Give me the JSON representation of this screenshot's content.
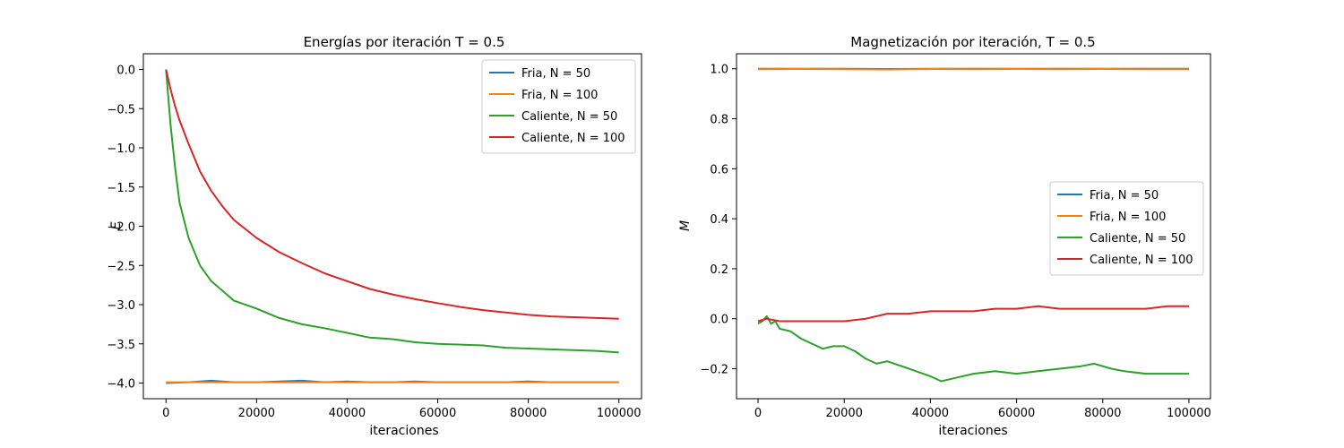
{
  "chart_data": [
    {
      "type": "line",
      "title": "Energías por iteración T = 0.5",
      "xlabel": "iteraciones",
      "ylabel": "E",
      "xlim": [
        -5000,
        105000
      ],
      "ylim": [
        -4.2,
        0.2
      ],
      "x_ticks": [
        0,
        20000,
        40000,
        60000,
        80000,
        100000
      ],
      "x_tick_labels": [
        "0",
        "20000",
        "40000",
        "60000",
        "80000",
        "100000"
      ],
      "y_ticks": [
        0.0,
        -0.5,
        -1.0,
        -1.5,
        -2.0,
        -2.5,
        -3.0,
        -3.5,
        -4.0
      ],
      "y_tick_labels": [
        "0.0",
        "−0.5",
        "−1.0",
        "−1.5",
        "−2.0",
        "−2.5",
        "−3.0",
        "−3.5",
        "−4.0"
      ],
      "grid": false,
      "legend_position": "top-right",
      "series": [
        {
          "name": "Fria, N = 50",
          "color": "#1f77b4",
          "x": [
            0,
            5000,
            10000,
            15000,
            20000,
            25000,
            30000,
            35000,
            40000,
            45000,
            50000,
            55000,
            60000,
            65000,
            70000,
            75000,
            80000,
            85000,
            90000,
            95000,
            100000
          ],
          "y": [
            -4.0,
            -3.99,
            -3.97,
            -3.99,
            -3.99,
            -3.98,
            -3.97,
            -3.99,
            -3.98,
            -3.99,
            -3.99,
            -3.98,
            -3.99,
            -3.99,
            -3.99,
            -3.99,
            -3.98,
            -3.99,
            -3.99,
            -3.99,
            -3.99
          ]
        },
        {
          "name": "Fria, N = 100",
          "color": "#ff7f0e",
          "x": [
            0,
            5000,
            10000,
            15000,
            20000,
            25000,
            30000,
            35000,
            40000,
            45000,
            50000,
            55000,
            60000,
            65000,
            70000,
            75000,
            80000,
            85000,
            90000,
            95000,
            100000
          ],
          "y": [
            -3.99,
            -3.99,
            -3.99,
            -3.99,
            -3.99,
            -3.99,
            -3.99,
            -3.99,
            -3.99,
            -3.99,
            -3.99,
            -3.99,
            -3.99,
            -3.99,
            -3.99,
            -3.99,
            -3.99,
            -3.99,
            -3.99,
            -3.99,
            -3.99
          ]
        },
        {
          "name": "Caliente, N = 50",
          "color": "#2ca02c",
          "x": [
            0,
            1000,
            2000,
            3000,
            5000,
            7500,
            10000,
            15000,
            20000,
            25000,
            30000,
            35000,
            40000,
            45000,
            50000,
            55000,
            60000,
            65000,
            70000,
            75000,
            80000,
            85000,
            90000,
            95000,
            100000
          ],
          "y": [
            0.0,
            -0.7,
            -1.25,
            -1.7,
            -2.15,
            -2.5,
            -2.7,
            -2.95,
            -3.05,
            -3.17,
            -3.25,
            -3.3,
            -3.36,
            -3.42,
            -3.44,
            -3.48,
            -3.5,
            -3.51,
            -3.52,
            -3.55,
            -3.56,
            -3.57,
            -3.58,
            -3.59,
            -3.61
          ]
        },
        {
          "name": "Caliente, N = 100",
          "color": "#d62728",
          "x": [
            0,
            1000,
            2000,
            3000,
            5000,
            7500,
            10000,
            12500,
            15000,
            20000,
            25000,
            30000,
            35000,
            40000,
            45000,
            50000,
            55000,
            60000,
            65000,
            70000,
            75000,
            80000,
            85000,
            90000,
            95000,
            100000
          ],
          "y": [
            0.0,
            -0.25,
            -0.47,
            -0.65,
            -0.95,
            -1.3,
            -1.55,
            -1.75,
            -1.92,
            -2.15,
            -2.33,
            -2.47,
            -2.6,
            -2.7,
            -2.8,
            -2.87,
            -2.93,
            -2.98,
            -3.03,
            -3.07,
            -3.1,
            -3.13,
            -3.15,
            -3.16,
            -3.17,
            -3.18
          ]
        }
      ]
    },
    {
      "type": "line",
      "title": "Magnetización por iteración, T = 0.5",
      "xlabel": "iteraciones",
      "ylabel": "M",
      "xlim": [
        -5000,
        105000
      ],
      "ylim": [
        -0.32,
        1.06
      ],
      "x_ticks": [
        0,
        20000,
        40000,
        60000,
        80000,
        100000
      ],
      "x_tick_labels": [
        "0",
        "20000",
        "40000",
        "60000",
        "80000",
        "100000"
      ],
      "y_ticks": [
        1.0,
        0.8,
        0.6,
        0.4,
        0.2,
        0.0,
        -0.2
      ],
      "y_tick_labels": [
        "1.0",
        "0.8",
        "0.6",
        "0.4",
        "0.2",
        "0.0",
        "−0.2"
      ],
      "grid": false,
      "legend_position": "center-right",
      "series": [
        {
          "name": "Fria, N = 50",
          "color": "#1f77b4",
          "x": [
            0,
            10000,
            20000,
            30000,
            40000,
            50000,
            60000,
            70000,
            80000,
            90000,
            100000
          ],
          "y": [
            1.0,
            1.0,
            1.0,
            0.999,
            1.0,
            1.0,
            1.0,
            1.0,
            1.0,
            1.0,
            1.0
          ]
        },
        {
          "name": "Fria, N = 100",
          "color": "#ff7f0e",
          "x": [
            0,
            10000,
            20000,
            30000,
            40000,
            50000,
            60000,
            70000,
            80000,
            90000,
            100000
          ],
          "y": [
            0.998,
            0.999,
            0.998,
            0.997,
            0.999,
            0.998,
            0.999,
            0.998,
            0.999,
            0.998,
            0.998
          ]
        },
        {
          "name": "Caliente, N = 50",
          "color": "#2ca02c",
          "x": [
            0,
            1000,
            2000,
            3000,
            4000,
            5000,
            7500,
            10000,
            12500,
            15000,
            17500,
            20000,
            22500,
            25000,
            27500,
            30000,
            35000,
            40000,
            42500,
            45000,
            50000,
            55000,
            60000,
            65000,
            70000,
            75000,
            78000,
            82000,
            85000,
            90000,
            95000,
            100000
          ],
          "y": [
            -0.02,
            -0.01,
            0.01,
            -0.02,
            -0.01,
            -0.04,
            -0.05,
            -0.08,
            -0.1,
            -0.12,
            -0.11,
            -0.11,
            -0.13,
            -0.16,
            -0.18,
            -0.17,
            -0.2,
            -0.23,
            -0.25,
            -0.24,
            -0.22,
            -0.21,
            -0.22,
            -0.21,
            -0.2,
            -0.19,
            -0.18,
            -0.2,
            -0.21,
            -0.22,
            -0.22,
            -0.22
          ]
        },
        {
          "name": "Caliente, N = 100",
          "color": "#d62728",
          "x": [
            0,
            2000,
            5000,
            10000,
            15000,
            20000,
            25000,
            30000,
            35000,
            40000,
            45000,
            50000,
            55000,
            60000,
            65000,
            70000,
            75000,
            80000,
            85000,
            90000,
            95000,
            100000
          ],
          "y": [
            -0.01,
            0.0,
            -0.01,
            -0.01,
            -0.01,
            -0.01,
            0.0,
            0.02,
            0.02,
            0.03,
            0.03,
            0.03,
            0.04,
            0.04,
            0.05,
            0.04,
            0.04,
            0.04,
            0.04,
            0.04,
            0.05,
            0.05
          ]
        }
      ]
    }
  ]
}
